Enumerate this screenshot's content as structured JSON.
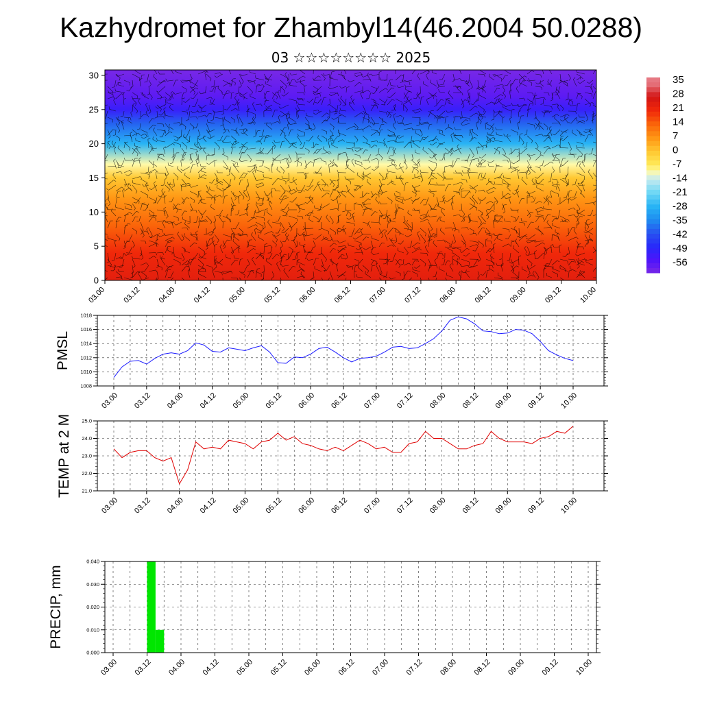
{
  "title": "Kazhydromet for Zhambyl14(46.2004 50.0288)",
  "subtitle": "03 ☆☆☆☆☆☆☆☆ 2025",
  "colors": {
    "pmsl_line": "#1a1aff",
    "temp_line": "#e00000",
    "precip_bar": "#00e600",
    "grid": "#000000"
  },
  "chart_data": [
    {
      "type": "heatmap",
      "title": "",
      "x_tick_labels": [
        "03.00",
        "03.12",
        "04.00",
        "04.12",
        "05.00",
        "05.12",
        "06.00",
        "06.12",
        "07.00",
        "07.12",
        "08.00",
        "08.12",
        "09.00",
        "09.12",
        "10.00"
      ],
      "y_ticks": [
        0,
        5,
        10,
        15,
        20,
        25,
        30
      ],
      "ylim": [
        0,
        30.8
      ],
      "colorbar_labels": [
        "35",
        "28",
        "21",
        "14",
        "7",
        "0",
        "-7",
        "-14",
        "-21",
        "-28",
        "-35",
        "-42",
        "-49",
        "-56"
      ],
      "colorbar_values": [
        35,
        28,
        21,
        14,
        7,
        0,
        -7,
        -14,
        -21,
        -28,
        -35,
        -42,
        -49,
        -56
      ],
      "overlay": "wind barbs",
      "temperature_profile": [
        {
          "level": 0,
          "value": 24
        },
        {
          "level": 4,
          "value": 21
        },
        {
          "level": 8,
          "value": 14
        },
        {
          "level": 12,
          "value": 7
        },
        {
          "level": 15,
          "value": 0
        },
        {
          "level": 17,
          "value": -10
        },
        {
          "level": 20,
          "value": -28
        },
        {
          "level": 23,
          "value": -40
        },
        {
          "level": 25,
          "value": -52
        },
        {
          "level": 27,
          "value": -58
        },
        {
          "level": 30.8,
          "value": -62
        }
      ]
    },
    {
      "type": "line",
      "ylabel": "PMSL",
      "x_tick_labels": [
        "03.00",
        "03.12",
        "04.00",
        "04.12",
        "05.00",
        "05.12",
        "06.00",
        "06.12",
        "07.00",
        "07.12",
        "08.00",
        "08.12",
        "09.00",
        "09.12",
        "10.00"
      ],
      "y_ticks": [
        "1008",
        "1010",
        "1012",
        "1014",
        "1016",
        "1018"
      ],
      "ylim": [
        1008,
        1018
      ],
      "series": [
        {
          "values": [
            1009.2,
            1010.7,
            1011.5,
            1011.6,
            1011.1,
            1011.9,
            1012.5,
            1012.7,
            1012.5,
            1013.0,
            1014.1,
            1013.8,
            1012.9,
            1012.8,
            1013.4,
            1013.2,
            1013.0,
            1013.4,
            1013.7,
            1012.8,
            1011.3,
            1011.2,
            1012.1,
            1012.0,
            1012.5,
            1013.3,
            1013.5,
            1012.8,
            1012.0,
            1011.4,
            1011.9,
            1012.0,
            1012.2,
            1012.8,
            1013.5,
            1013.6,
            1013.3,
            1013.4,
            1014.0,
            1014.7,
            1015.8,
            1017.3,
            1017.8,
            1017.5,
            1016.8,
            1015.8,
            1015.7,
            1015.4,
            1015.5,
            1016.0,
            1015.9,
            1015.4,
            1014.3,
            1013.0,
            1012.4,
            1011.9,
            1011.6
          ]
        }
      ]
    },
    {
      "type": "line",
      "ylabel": "TEMP at 2 M",
      "x_tick_labels": [
        "03.00",
        "03.12",
        "04.00",
        "04.12",
        "05.00",
        "05.12",
        "06.00",
        "06.12",
        "07.00",
        "07.12",
        "08.00",
        "08.12",
        "09.00",
        "09.12",
        "10.00"
      ],
      "y_ticks": [
        "21.0",
        "22.0",
        "23.0",
        "24.0",
        "25.0"
      ],
      "ylim": [
        21,
        25
      ],
      "series": [
        {
          "values": [
            23.4,
            22.9,
            23.2,
            23.3,
            23.3,
            22.9,
            22.7,
            22.9,
            21.4,
            22.2,
            23.8,
            23.4,
            23.5,
            23.4,
            23.9,
            23.8,
            23.7,
            23.4,
            23.8,
            23.9,
            24.3,
            23.9,
            24.1,
            23.7,
            23.6,
            23.4,
            23.3,
            23.5,
            23.3,
            23.6,
            23.9,
            23.7,
            23.4,
            23.5,
            23.2,
            23.2,
            23.7,
            23.8,
            24.4,
            24.0,
            24.0,
            23.7,
            23.4,
            23.4,
            23.6,
            23.7,
            24.4,
            24.0,
            23.8,
            23.8,
            23.8,
            23.7,
            24.0,
            24.1,
            24.4,
            24.3,
            24.7
          ]
        }
      ]
    },
    {
      "type": "bar",
      "ylabel": "PRECIP, mm",
      "x_tick_labels": [
        "03.00",
        "03.12",
        "04.00",
        "04.12",
        "05.00",
        "05.12",
        "06.00",
        "06.12",
        "07.00",
        "07.12",
        "08.00",
        "08.12",
        "09.00",
        "09.12",
        "10.00"
      ],
      "y_ticks": [
        "0.000",
        "0.010",
        "0.020",
        "0.030",
        "0.040"
      ],
      "ylim": [
        0,
        0.04
      ],
      "bars": [
        {
          "start_step": 4,
          "end_step": 5,
          "value": 0.04
        },
        {
          "start_step": 5,
          "end_step": 6,
          "value": 0.01
        }
      ]
    }
  ]
}
